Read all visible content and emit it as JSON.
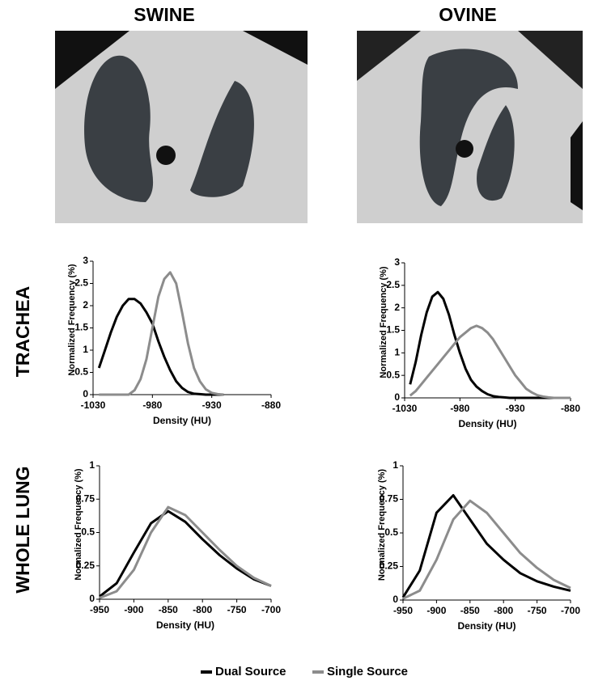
{
  "column_titles": [
    "SWINE",
    "OVINE"
  ],
  "row_labels": [
    "TRACHEA",
    "WHOLE LUNG"
  ],
  "chart_data": [
    {
      "type": "line",
      "xlabel": "Density (HU)",
      "ylabel": "Normalized Frequency (%)",
      "x": [
        -1025,
        -1020,
        -1015,
        -1010,
        -1005,
        -1000,
        -995,
        -990,
        -985,
        -980,
        -975,
        -970,
        -965,
        -960,
        -955,
        -950,
        -945,
        -940,
        -935,
        -930,
        -925,
        -920
      ],
      "series": [
        {
          "name": "Dual Source",
          "color": "#000000",
          "values": [
            0.6,
            1.0,
            1.4,
            1.75,
            2.0,
            2.15,
            2.15,
            2.05,
            1.85,
            1.6,
            1.2,
            0.85,
            0.55,
            0.3,
            0.15,
            0.06,
            0.02,
            0.01,
            0,
            0,
            0,
            0
          ]
        },
        {
          "name": "Single Source",
          "color": "#8c8c8c",
          "values": [
            0,
            0,
            0,
            0,
            0,
            0,
            0.1,
            0.35,
            0.8,
            1.5,
            2.2,
            2.6,
            2.75,
            2.5,
            1.85,
            1.15,
            0.6,
            0.3,
            0.12,
            0.04,
            0.01,
            0
          ]
        }
      ],
      "xlim": [
        -1030,
        -880
      ],
      "xticks": [
        -1030,
        -980,
        -930,
        -880
      ],
      "ylim": [
        0,
        3
      ],
      "yticks": [
        0,
        0.5,
        1,
        1.5,
        2,
        2.5,
        3
      ]
    },
    {
      "type": "line",
      "xlabel": "Density (HU)",
      "ylabel": "Normalized Frequency (%)",
      "x": [
        -1025,
        -1020,
        -1015,
        -1010,
        -1005,
        -1000,
        -995,
        -990,
        -985,
        -980,
        -975,
        -970,
        -965,
        -960,
        -955,
        -950,
        -945,
        -940,
        -935,
        -930,
        -925,
        -920,
        -915,
        -910,
        -905,
        -900,
        -895,
        -890,
        -885,
        -880
      ],
      "series": [
        {
          "name": "Dual Source",
          "color": "#000000",
          "values": [
            0.3,
            0.8,
            1.4,
            1.9,
            2.25,
            2.35,
            2.2,
            1.85,
            1.4,
            1.0,
            0.65,
            0.4,
            0.25,
            0.15,
            0.08,
            0.04,
            0.02,
            0.01,
            0,
            0,
            0,
            0,
            0,
            0,
            0,
            0,
            0,
            0,
            0,
            0
          ]
        },
        {
          "name": "Single Source",
          "color": "#8c8c8c",
          "values": [
            0.05,
            0.15,
            0.3,
            0.45,
            0.6,
            0.75,
            0.9,
            1.05,
            1.2,
            1.35,
            1.45,
            1.55,
            1.6,
            1.55,
            1.45,
            1.3,
            1.1,
            0.9,
            0.7,
            0.5,
            0.35,
            0.2,
            0.12,
            0.06,
            0.03,
            0.01,
            0,
            0,
            0,
            0
          ]
        }
      ],
      "xlim": [
        -1030,
        -880
      ],
      "xticks": [
        -1030,
        -980,
        -930,
        -880
      ],
      "ylim": [
        0,
        3
      ],
      "yticks": [
        0,
        0.5,
        1,
        1.5,
        2,
        2.5,
        3
      ]
    },
    {
      "type": "line",
      "xlabel": "Density (HU)",
      "ylabel": "Normalized Frequency (%)",
      "x": [
        -950,
        -925,
        -900,
        -875,
        -850,
        -825,
        -800,
        -775,
        -750,
        -725,
        -700
      ],
      "series": [
        {
          "name": "Dual Source",
          "color": "#000000",
          "values": [
            0.02,
            0.12,
            0.35,
            0.57,
            0.66,
            0.58,
            0.45,
            0.33,
            0.23,
            0.15,
            0.1
          ]
        },
        {
          "name": "Single Source",
          "color": "#8c8c8c",
          "values": [
            0.01,
            0.06,
            0.22,
            0.5,
            0.69,
            0.63,
            0.5,
            0.37,
            0.25,
            0.16,
            0.1
          ]
        }
      ],
      "xlim": [
        -950,
        -700
      ],
      "xticks": [
        -950,
        -900,
        -850,
        -800,
        -750,
        -700
      ],
      "ylim": [
        0,
        1
      ],
      "yticks": [
        0,
        0.25,
        0.5,
        0.75,
        1
      ]
    },
    {
      "type": "line",
      "xlabel": "Density (HU)",
      "ylabel": "Normalized Frequency (%)",
      "x": [
        -950,
        -925,
        -900,
        -875,
        -850,
        -825,
        -800,
        -775,
        -750,
        -725,
        -700
      ],
      "series": [
        {
          "name": "Dual Source",
          "color": "#000000",
          "values": [
            0.02,
            0.22,
            0.65,
            0.78,
            0.6,
            0.42,
            0.3,
            0.2,
            0.14,
            0.1,
            0.07
          ]
        },
        {
          "name": "Single Source",
          "color": "#8c8c8c",
          "values": [
            0.01,
            0.07,
            0.3,
            0.6,
            0.74,
            0.65,
            0.5,
            0.35,
            0.24,
            0.15,
            0.09
          ]
        }
      ],
      "xlim": [
        -950,
        -700
      ],
      "xticks": [
        -950,
        -900,
        -850,
        -800,
        -750,
        -700
      ],
      "ylim": [
        0,
        1
      ],
      "yticks": [
        0,
        0.25,
        0.5,
        0.75,
        1
      ]
    }
  ]
}
